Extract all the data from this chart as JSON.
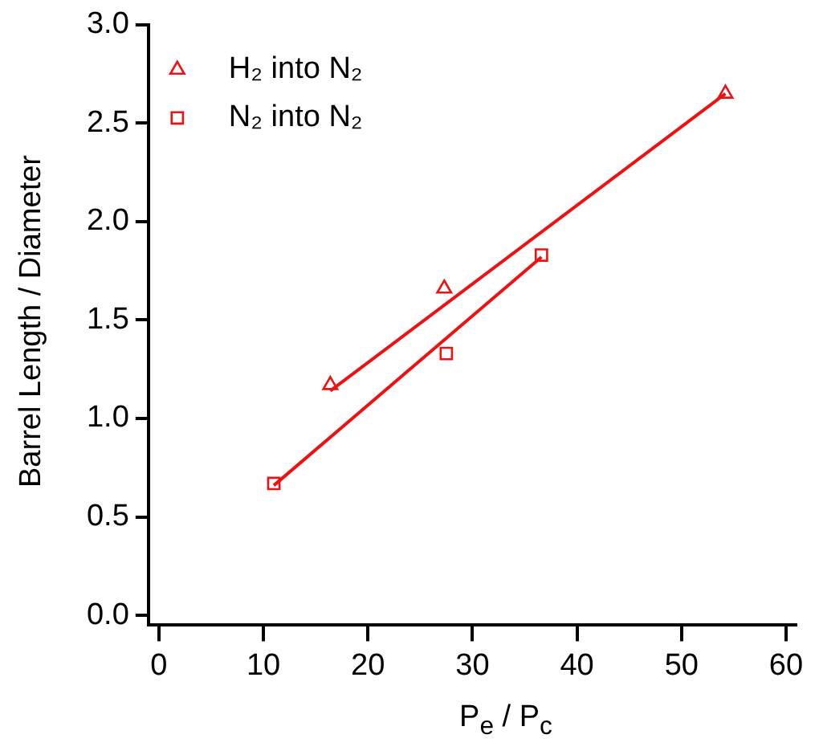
{
  "chart_data": {
    "type": "scatter",
    "xlabel": "P$_{e}$ / P$_{c}$",
    "ylabel": "Barrel Length / Diameter",
    "xlim": [
      -1,
      61
    ],
    "ylim": [
      -0.05,
      3.0
    ],
    "xticks": [
      0,
      10,
      20,
      30,
      40,
      50,
      60
    ],
    "yticks": [
      {
        "value": 0,
        "label": "0.0"
      },
      0.5,
      {
        "value": 1,
        "label": "1.0"
      },
      1.5,
      {
        "value": 2,
        "label": "2.0"
      },
      2.5,
      {
        "value": 3,
        "label": "3.0"
      }
    ],
    "grid": false,
    "legend": "top left",
    "series": [
      {
        "name": "H₂ into N₂",
        "color": "#ee1111",
        "marker": "triangle",
        "x": [
          16.4,
          27.3,
          54.2
        ],
        "values": [
          1.17,
          1.66,
          2.65
        ]
      },
      {
        "name": "N₂ into N₂",
        "color": "#ee1111",
        "marker": "square",
        "x": [
          11.0,
          27.5,
          36.6
        ],
        "values": [
          0.67,
          1.33,
          1.83
        ]
      },
      {
        "type": "line",
        "color": "#ee1111",
        "marker": "none",
        "x": [
          16.4,
          54.2
        ],
        "values": [
          1.14,
          2.65
        ]
      },
      {
        "type": "line",
        "color": "#ee1111",
        "marker": "none",
        "x": [
          11.0,
          36.6
        ],
        "values": [
          0.66,
          1.82
        ]
      }
    ]
  }
}
